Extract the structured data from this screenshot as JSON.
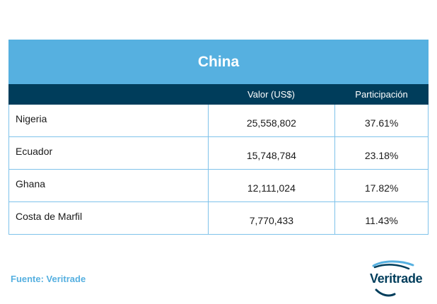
{
  "table": {
    "title": "China",
    "headers": [
      "",
      "Valor (US$)",
      "Participación"
    ],
    "rows": [
      {
        "country": "Nigeria",
        "value": "25,558,802",
        "share": "37.61%"
      },
      {
        "country": "Ecuador",
        "value": "15,748,784",
        "share": "23.18%"
      },
      {
        "country": "Ghana",
        "value": "12,111,024",
        "share": "17.82%"
      },
      {
        "country": "Costa de Marfil",
        "value": "7,770,433",
        "share": "11.43%"
      }
    ]
  },
  "source": "Fuente: Veritrade",
  "logo": {
    "text": "Veritrade",
    "icon": "veritrade-swoosh-icon"
  },
  "colors": {
    "title_bg": "#56b0e0",
    "header_bg": "#003d5b",
    "border": "#7fc2ea",
    "source_text": "#56b0e0"
  }
}
